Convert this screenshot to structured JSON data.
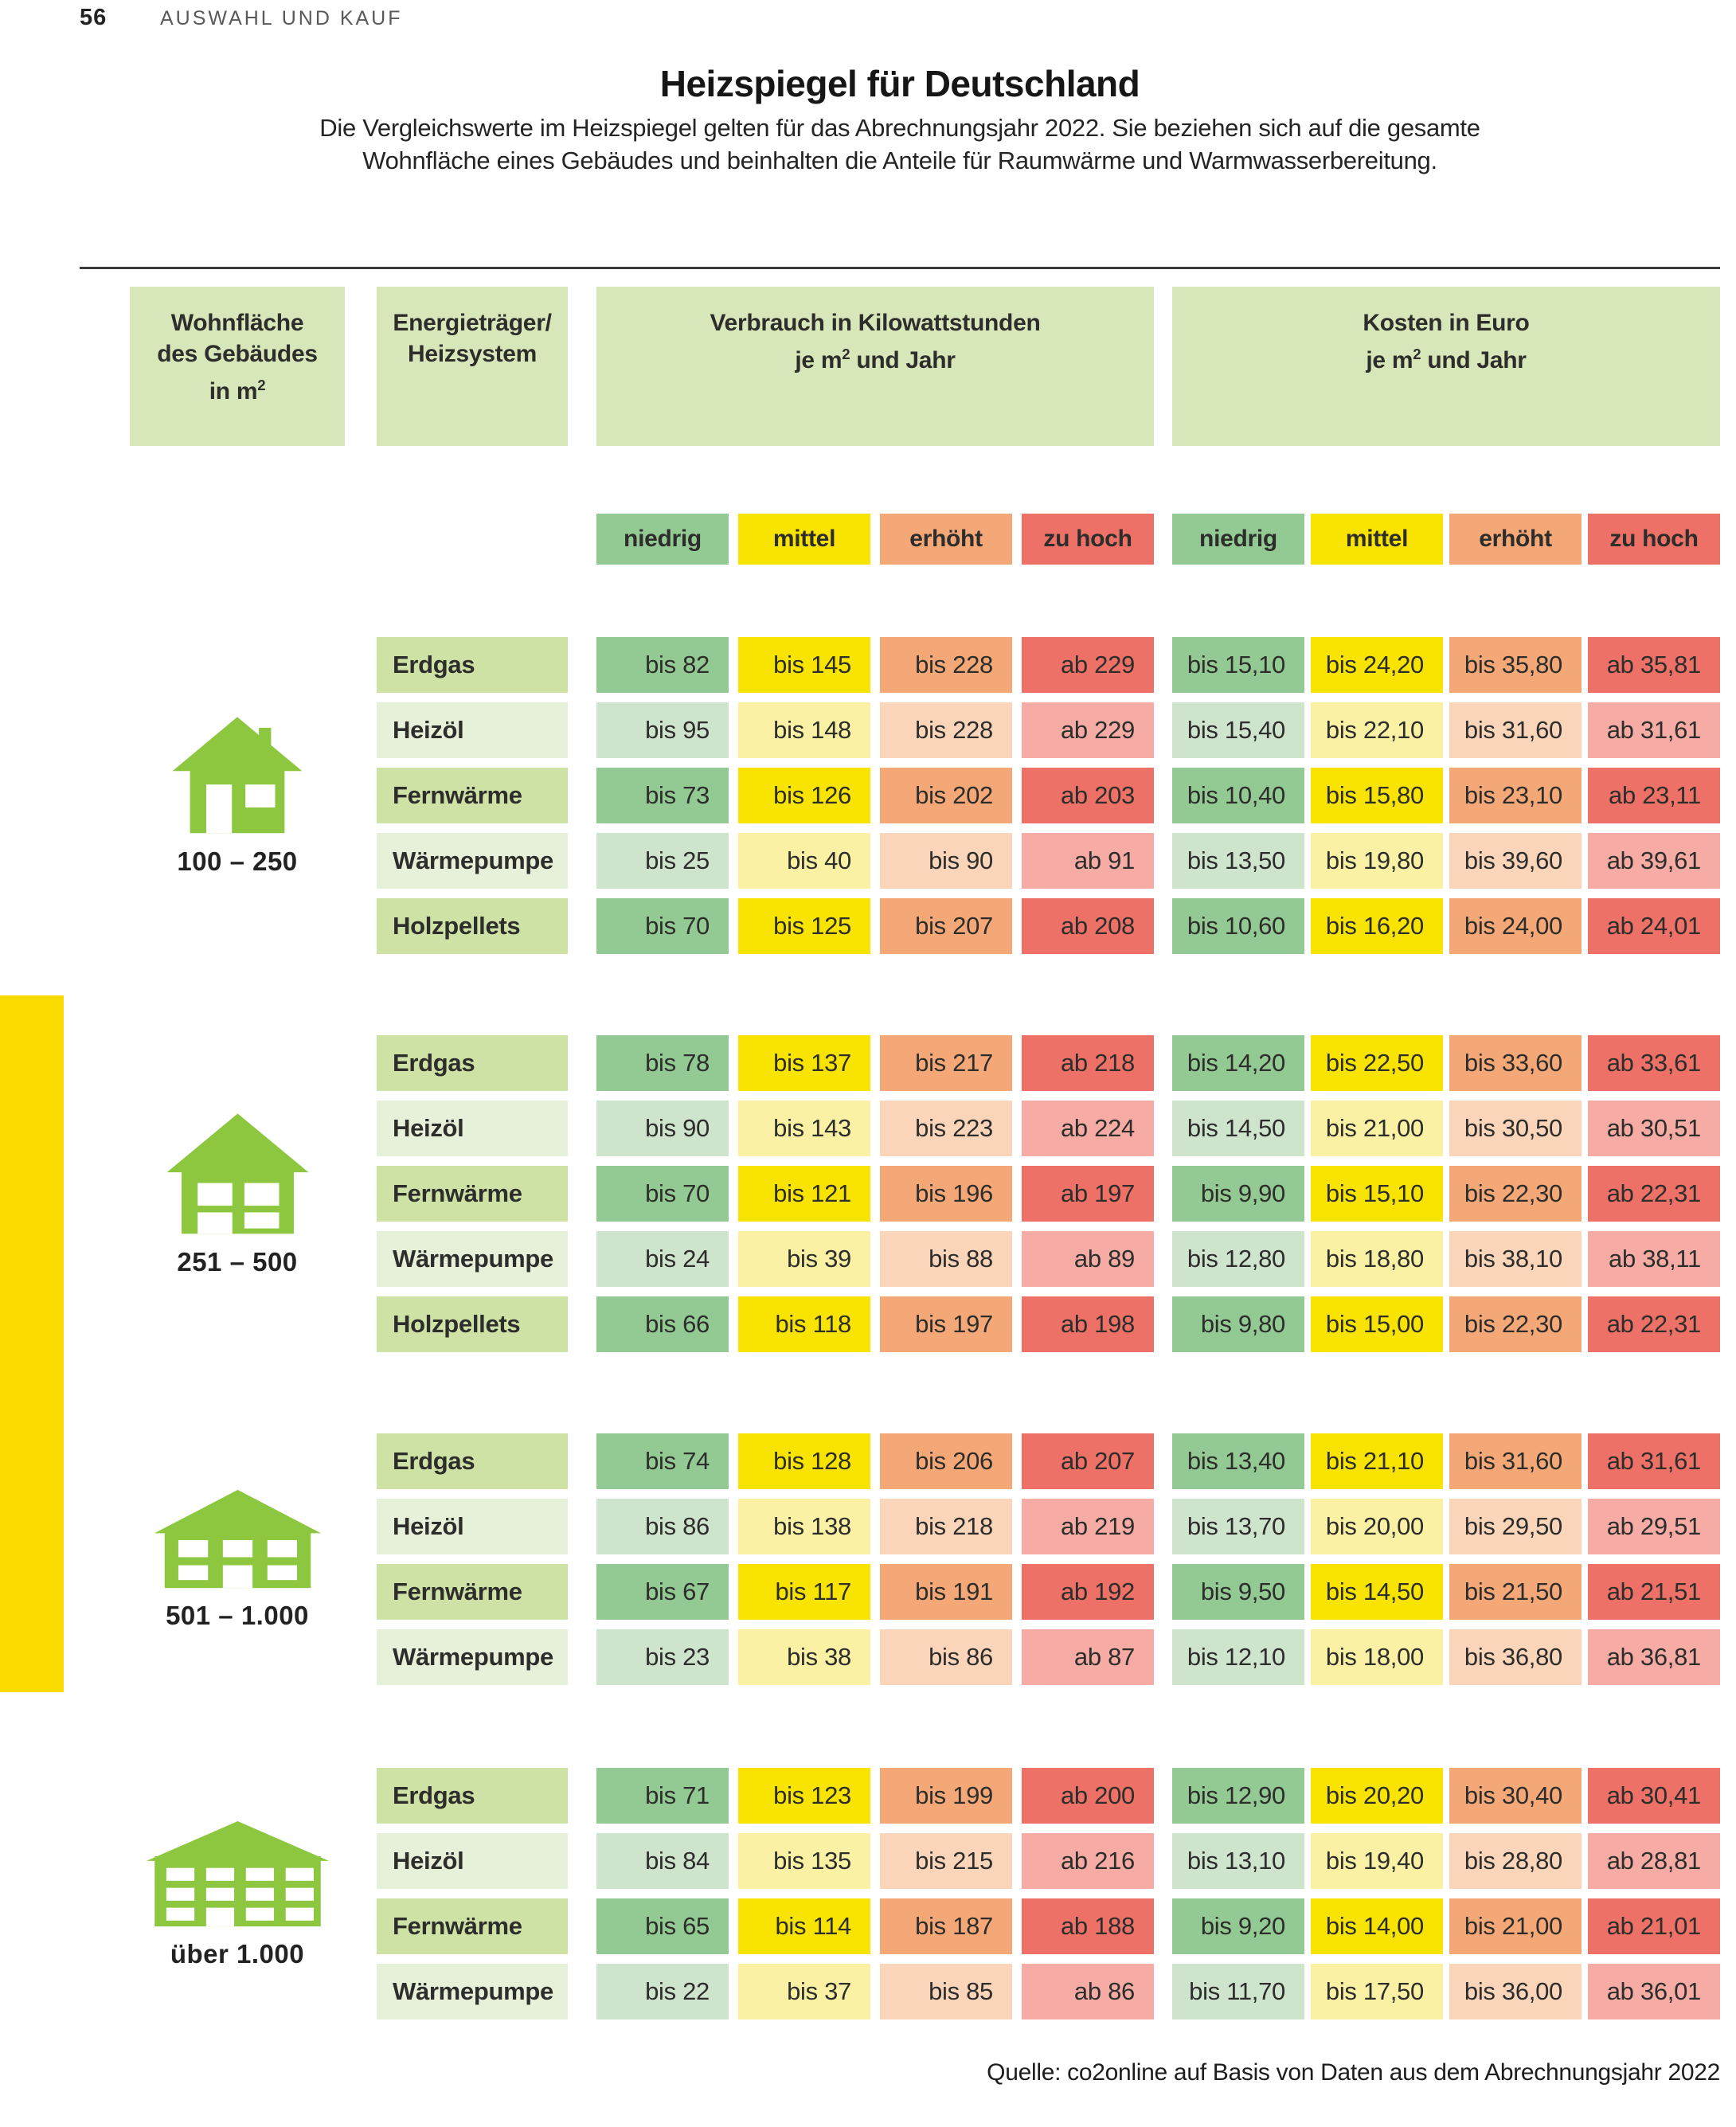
{
  "page": {
    "page_number": "56",
    "section_title": "AUSWAHL UND KAUF",
    "title": "Heizspiegel für Deutschland",
    "subtitle_line1": "Die Vergleichswerte im Heizspiegel gelten für das Abrechnungsjahr 2022. Sie beziehen sich auf die gesamte",
    "subtitle_line2": "Wohnfläche eines Gebäudes und beinhalten die Anteile für Raumwärme und Warmwasserbereitung.",
    "source": "Quelle: co2online auf Basis von Daten aus dem Abrechnungsjahr 2022"
  },
  "table": {
    "headers": {
      "area_line1": "Wohnfläche",
      "area_line2": "des Gebäudes",
      "area_line3_pre": "in m",
      "area_sup": "2",
      "energy_line1": "Energieträger/",
      "energy_line2": "Heizsystem",
      "consumption_line1": "Verbrauch in Kilowattstunden",
      "consumption_line2_pre": "je m",
      "consumption_sup": "2",
      "consumption_line2_post": " und Jahr",
      "cost_line1": "Kosten in Euro",
      "cost_line2_pre": "je m",
      "cost_sup": "2",
      "cost_line2_post": " und Jahr"
    },
    "levels": [
      "niedrig",
      "mittel",
      "erhöht",
      "zu hoch"
    ],
    "groups": [
      {
        "area_label": "100 – 250",
        "icon": "house-small",
        "rows": [
          {
            "energy": "Erdgas",
            "tone": "strong",
            "consumption": [
              "bis 82",
              "bis 145",
              "bis 228",
              "ab 229"
            ],
            "cost": [
              "bis 15,10",
              "bis 24,20",
              "bis 35,80",
              "ab 35,81"
            ]
          },
          {
            "energy": "Heizöl",
            "tone": "pale",
            "consumption": [
              "bis 95",
              "bis 148",
              "bis 228",
              "ab 229"
            ],
            "cost": [
              "bis 15,40",
              "bis 22,10",
              "bis 31,60",
              "ab 31,61"
            ]
          },
          {
            "energy": "Fernwärme",
            "tone": "strong",
            "consumption": [
              "bis 73",
              "bis 126",
              "bis 202",
              "ab 203"
            ],
            "cost": [
              "bis 10,40",
              "bis 15,80",
              "bis 23,10",
              "ab 23,11"
            ]
          },
          {
            "energy": "Wärmepumpe",
            "tone": "pale",
            "consumption": [
              "bis 25",
              "bis 40",
              "bis 90",
              "ab 91"
            ],
            "cost": [
              "bis 13,50",
              "bis 19,80",
              "bis 39,60",
              "ab 39,61"
            ]
          },
          {
            "energy": "Holzpellets",
            "tone": "strong",
            "consumption": [
              "bis 70",
              "bis 125",
              "bis 207",
              "ab 208"
            ],
            "cost": [
              "bis 10,60",
              "bis 16,20",
              "bis 24,00",
              "ab 24,01"
            ]
          }
        ]
      },
      {
        "area_label": "251 – 500",
        "icon": "house-medium",
        "rows": [
          {
            "energy": "Erdgas",
            "tone": "strong",
            "consumption": [
              "bis 78",
              "bis 137",
              "bis 217",
              "ab 218"
            ],
            "cost": [
              "bis 14,20",
              "bis 22,50",
              "bis 33,60",
              "ab 33,61"
            ]
          },
          {
            "energy": "Heizöl",
            "tone": "pale",
            "consumption": [
              "bis 90",
              "bis 143",
              "bis 223",
              "ab 224"
            ],
            "cost": [
              "bis 14,50",
              "bis 21,00",
              "bis 30,50",
              "ab 30,51"
            ]
          },
          {
            "energy": "Fernwärme",
            "tone": "strong",
            "consumption": [
              "bis 70",
              "bis 121",
              "bis 196",
              "ab 197"
            ],
            "cost": [
              "bis 9,90",
              "bis 15,10",
              "bis 22,30",
              "ab 22,31"
            ]
          },
          {
            "energy": "Wärmepumpe",
            "tone": "pale",
            "consumption": [
              "bis 24",
              "bis 39",
              "bis 88",
              "ab 89"
            ],
            "cost": [
              "bis 12,80",
              "bis 18,80",
              "bis 38,10",
              "ab 38,11"
            ]
          },
          {
            "energy": "Holzpellets",
            "tone": "strong",
            "consumption": [
              "bis 66",
              "bis 118",
              "bis 197",
              "ab 198"
            ],
            "cost": [
              "bis 9,80",
              "bis 15,00",
              "bis 22,30",
              "ab 22,31"
            ]
          }
        ]
      },
      {
        "area_label": "501 – 1.000",
        "icon": "building-wide",
        "rows": [
          {
            "energy": "Erdgas",
            "tone": "strong",
            "consumption": [
              "bis 74",
              "bis 128",
              "bis 206",
              "ab 207"
            ],
            "cost": [
              "bis 13,40",
              "bis 21,10",
              "bis 31,60",
              "ab 31,61"
            ]
          },
          {
            "energy": "Heizöl",
            "tone": "pale",
            "consumption": [
              "bis 86",
              "bis 138",
              "bis 218",
              "ab 219"
            ],
            "cost": [
              "bis 13,70",
              "bis 20,00",
              "bis 29,50",
              "ab 29,51"
            ]
          },
          {
            "energy": "Fernwärme",
            "tone": "strong",
            "consumption": [
              "bis 67",
              "bis 117",
              "bis 191",
              "ab 192"
            ],
            "cost": [
              "bis 9,50",
              "bis 14,50",
              "bis 21,50",
              "ab 21,51"
            ]
          },
          {
            "energy": "Wärmepumpe",
            "tone": "pale",
            "consumption": [
              "bis 23",
              "bis 38",
              "bis 86",
              "ab 87"
            ],
            "cost": [
              "bis 12,10",
              "bis 18,00",
              "bis 36,80",
              "ab 36,81"
            ]
          }
        ]
      },
      {
        "area_label": "über 1.000",
        "icon": "building-widest",
        "rows": [
          {
            "energy": "Erdgas",
            "tone": "strong",
            "consumption": [
              "bis 71",
              "bis 123",
              "bis 199",
              "ab 200"
            ],
            "cost": [
              "bis 12,90",
              "bis 20,20",
              "bis 30,40",
              "ab 30,41"
            ]
          },
          {
            "energy": "Heizöl",
            "tone": "pale",
            "consumption": [
              "bis 84",
              "bis 135",
              "bis 215",
              "ab 216"
            ],
            "cost": [
              "bis 13,10",
              "bis 19,40",
              "bis 28,80",
              "ab 28,81"
            ]
          },
          {
            "energy": "Fernwärme",
            "tone": "strong",
            "consumption": [
              "bis 65",
              "bis 114",
              "bis 187",
              "ab 188"
            ],
            "cost": [
              "bis 9,20",
              "bis 14,00",
              "bis 21,00",
              "ab 21,01"
            ]
          },
          {
            "energy": "Wärmepumpe",
            "tone": "pale",
            "consumption": [
              "bis 22",
              "bis 37",
              "bis 85",
              "ab 86"
            ],
            "cost": [
              "bis 11,70",
              "bis 17,50",
              "bis 36,00",
              "ab 36,01"
            ]
          }
        ]
      }
    ]
  },
  "colors": {
    "housegreen": "#8dc63f",
    "sideyellow": "#fcdc00",
    "hdrgreen": "#d8e7ba",
    "labelstrong": "#cfe2a6",
    "labelpale": "#e7f1d9",
    "lv0": "#93c993",
    "lv0p": "#cfe4cd",
    "lv1": "#f8e400",
    "lv1p": "#faf1a4",
    "lv2": "#f5a877",
    "lv2p": "#fbd5ba",
    "lv3": "#ee7167",
    "lv3p": "#f6aca4",
    "text": "#2d2d2b",
    "rule": "#3b3b3a",
    "secgray": "#58595b"
  }
}
